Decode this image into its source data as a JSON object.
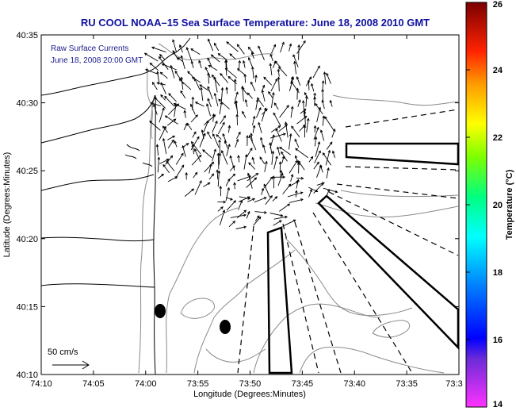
{
  "title": "RU COOL  NOAA–15  Sea Surface Temperature:  June 18, 2008 2010 GMT",
  "annotation": {
    "line1": "Raw Surface Currents",
    "line2": "June 18, 2008 20:00 GMT"
  },
  "scale_label": "50 cm/s",
  "x_axis": {
    "label": "Longitude (Degrees:Minutes)",
    "ticks": [
      "74:10",
      "74:05",
      "74:00",
      "73:55",
      "73:50",
      "73:45",
      "73:40",
      "73:35",
      "73:3"
    ]
  },
  "y_axis": {
    "label": "Latitude (Degrees:Minutes)",
    "ticks": [
      "40:35",
      "40:30",
      "40:25",
      "40:20",
      "40:15",
      "40:10"
    ]
  },
  "colorbar": {
    "label": "Temperature (°C)",
    "ticks": [
      "26",
      "24",
      "22",
      "20",
      "18",
      "16",
      "14"
    ],
    "colors": [
      "#8b0000",
      "#ff0000",
      "#ff8c00",
      "#ffff00",
      "#7fff00",
      "#00ff7f",
      "#00ffff",
      "#0080ff",
      "#0000ff",
      "#9400d3",
      "#ff00ff"
    ]
  },
  "map_colors": {
    "coast": "#000000",
    "bathymetry": "#8a8a8a",
    "vectors": "#000000"
  },
  "chart_data": {
    "type": "map",
    "title": "RU COOL  NOAA–15  Sea Surface Temperature:  June 18, 2008 2010 GMT",
    "xlabel": "Longitude (Degrees:Minutes)",
    "ylabel": "Latitude (Degrees:Minutes)",
    "xlim": [
      "74:10",
      "73:30"
    ],
    "ylim": [
      "40:10",
      "40:35"
    ],
    "colorbar_range": [
      14,
      26
    ],
    "vector_scale": "50 cm/s"
  }
}
